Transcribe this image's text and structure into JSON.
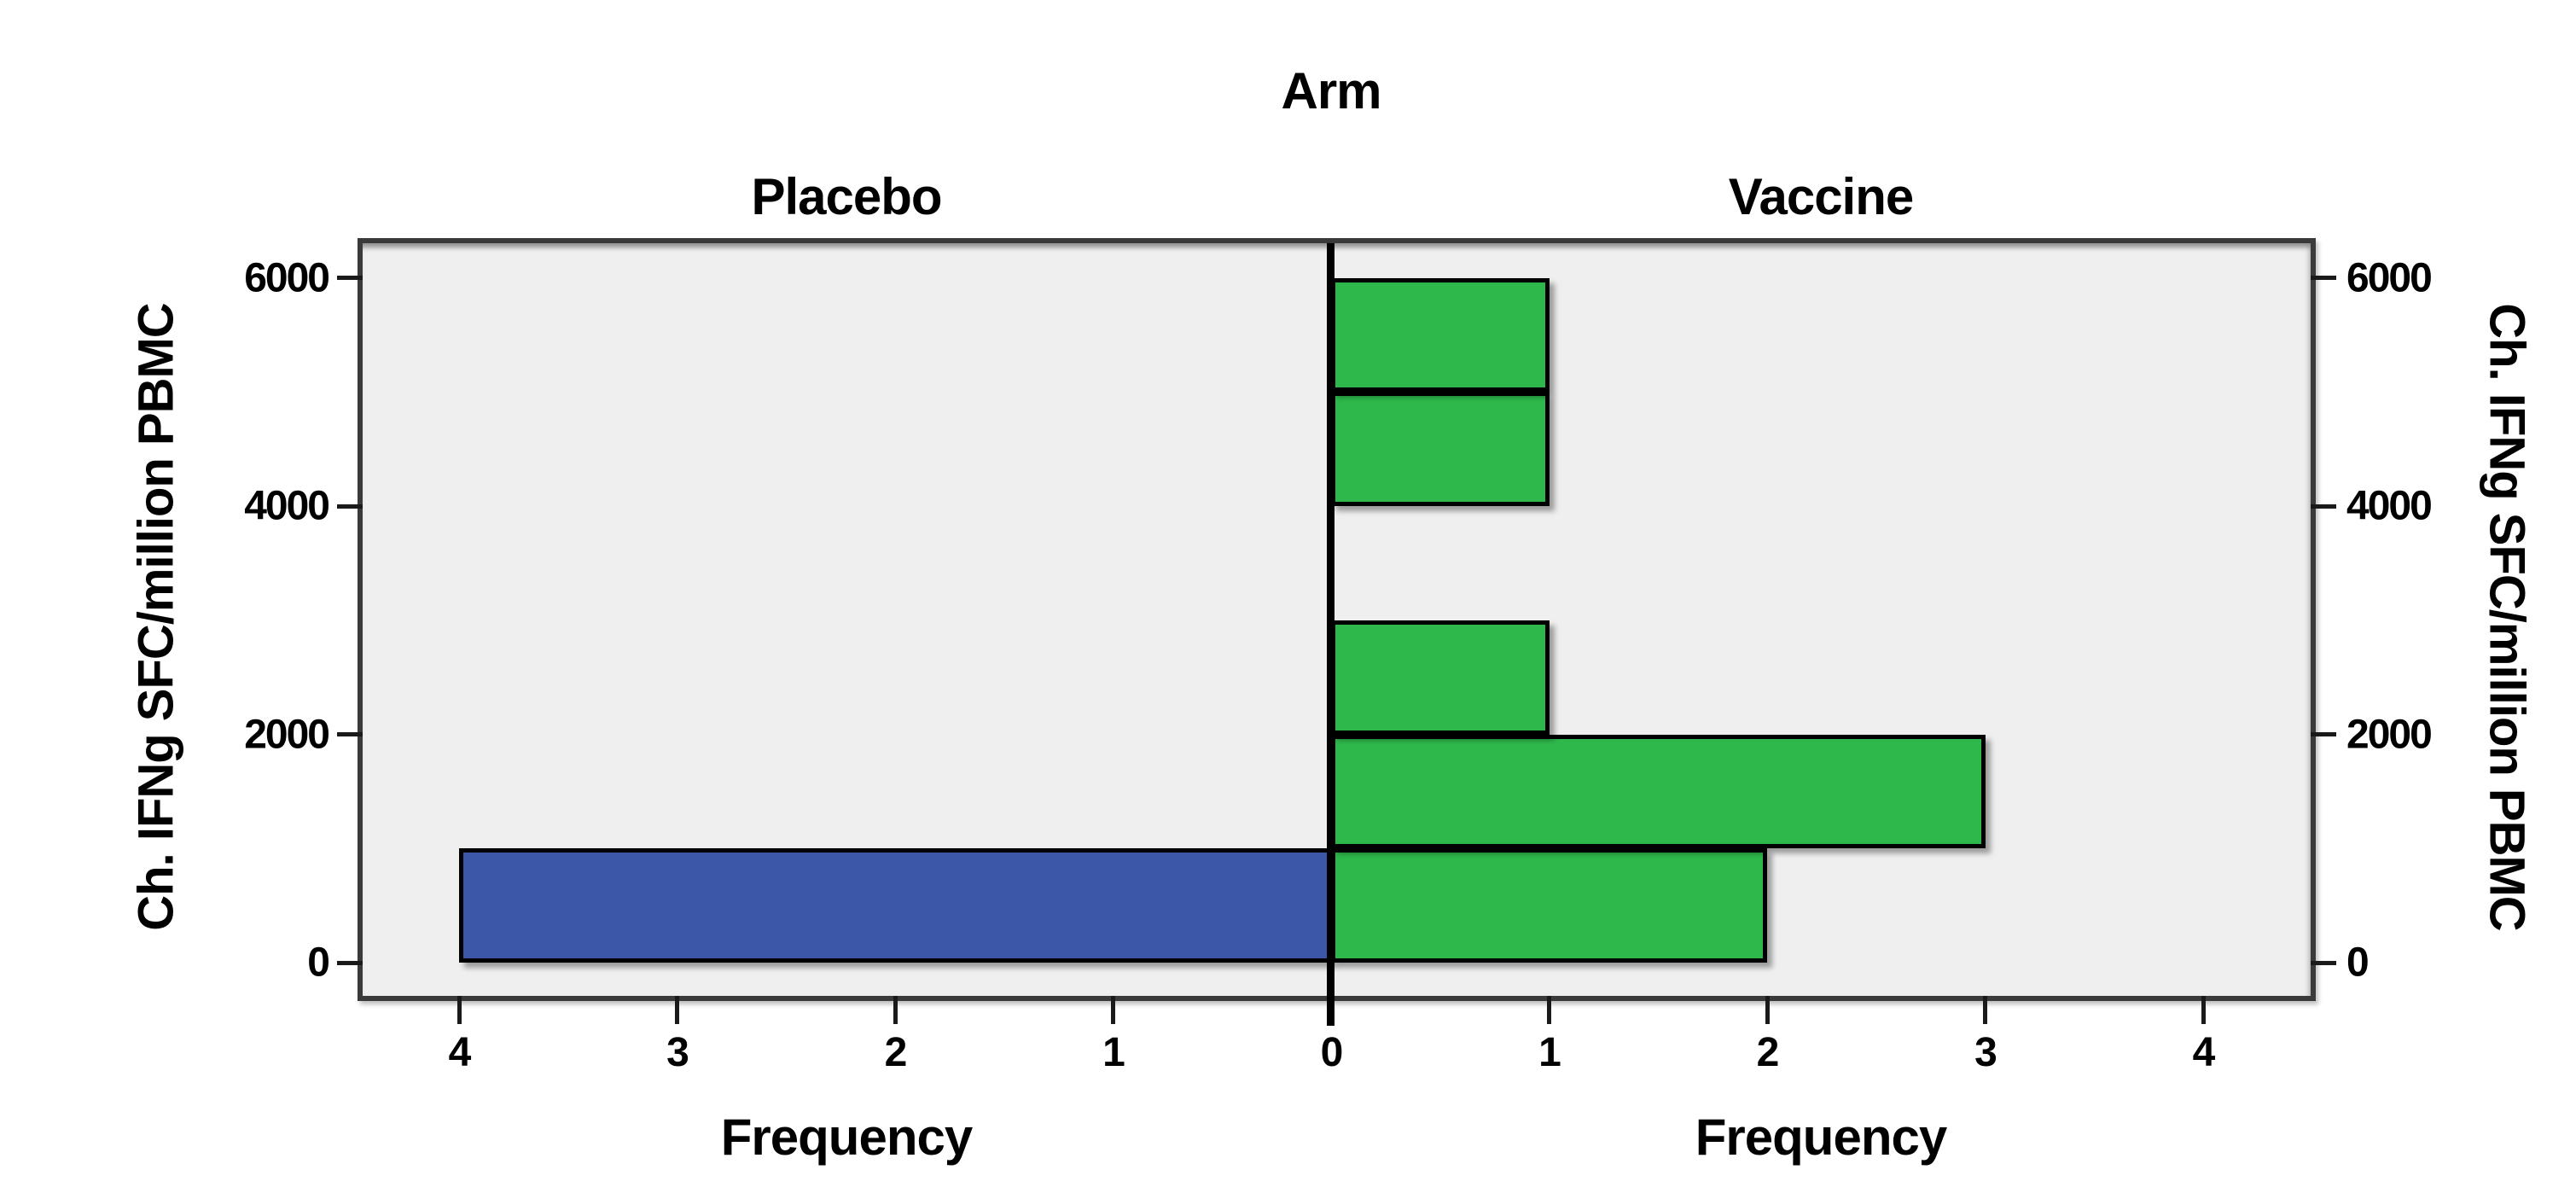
{
  "title": "Arm",
  "chart_data": {
    "type": "bar",
    "subtype": "population_pyramid_histogram",
    "title": "Arm",
    "panel_titles": [
      "Placebo",
      "Vaccine"
    ],
    "xlabel": "Frequency",
    "ylabel_left": "Ch. IFNg SFC/million PBMC",
    "ylabel_right": "Ch. IFNg SFC/million PBMC",
    "y_axis": {
      "min": 0,
      "max": 6000,
      "ticks": [
        0,
        2000,
        4000,
        6000
      ],
      "bin_width": 1000
    },
    "x_axis": {
      "label": "Frequency",
      "ticks_left": [
        4,
        3,
        2,
        1
      ],
      "center_tick": 0,
      "ticks_right": [
        1,
        2,
        3,
        4
      ],
      "max_shown": 4,
      "lim": 4.5
    },
    "series": [
      {
        "name": "Placebo",
        "side": "left",
        "color": "#3c57a8",
        "bins": [
          {
            "y_from": 0,
            "y_to": 1000,
            "frequency": 4
          }
        ]
      },
      {
        "name": "Vaccine",
        "side": "right",
        "color": "#2eb84b",
        "bins": [
          {
            "y_from": 0,
            "y_to": 1000,
            "frequency": 2
          },
          {
            "y_from": 1000,
            "y_to": 2000,
            "frequency": 3
          },
          {
            "y_from": 2000,
            "y_to": 3000,
            "frequency": 1
          },
          {
            "y_from": 4000,
            "y_to": 5000,
            "frequency": 1
          },
          {
            "y_from": 5000,
            "y_to": 6000,
            "frequency": 1
          }
        ]
      }
    ],
    "colors": {
      "plot_background": "#efefef",
      "frame_border": "#3a3a3a",
      "bar_border": "#000000",
      "center_line": "#000000",
      "placebo_bar": "#3c57a8",
      "vaccine_bar": "#2eb84b",
      "text": "#000000",
      "page_background": "#ffffff"
    },
    "layout_hints": {
      "grid": false,
      "legend": false,
      "value_axis": "vertical",
      "frequency_axis": "horizontal mirrored at center"
    }
  }
}
